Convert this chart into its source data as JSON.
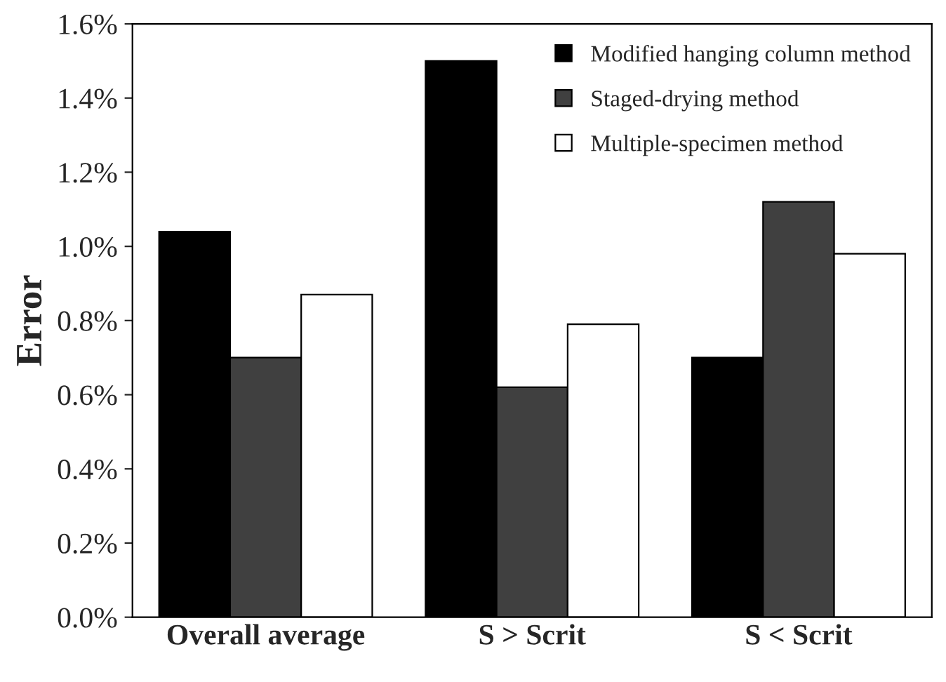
{
  "chart_data": {
    "type": "bar",
    "ylabel": "Error",
    "categories": [
      "Overall average",
      "S > Scrit",
      "S < Scrit"
    ],
    "series": [
      {
        "name": "Modified hanging column method",
        "color": "#000000",
        "values": [
          1.04,
          1.5,
          0.7
        ]
      },
      {
        "name": "Staged-drying method",
        "color": "#404040",
        "values": [
          0.7,
          0.62,
          1.12
        ]
      },
      {
        "name": "Multiple-specimen method",
        "color": "#ffffff",
        "values": [
          0.87,
          0.79,
          0.98
        ]
      }
    ],
    "ylim": [
      0,
      1.6
    ],
    "yticks": [
      {
        "value": 0,
        "label": "0.0%"
      },
      {
        "value": 0.2,
        "label": "0.2%"
      },
      {
        "value": 0.4,
        "label": "0.4%"
      },
      {
        "value": 0.6,
        "label": "0.6%"
      },
      {
        "value": 0.8,
        "label": "0.8%"
      },
      {
        "value": 1.0,
        "label": "1.0%"
      },
      {
        "value": 1.2,
        "label": "1.2%"
      },
      {
        "value": 1.4,
        "label": "1.4%"
      },
      {
        "value": 1.6,
        "label": "1.6%"
      }
    ],
    "grid": false,
    "legend": "top right"
  }
}
